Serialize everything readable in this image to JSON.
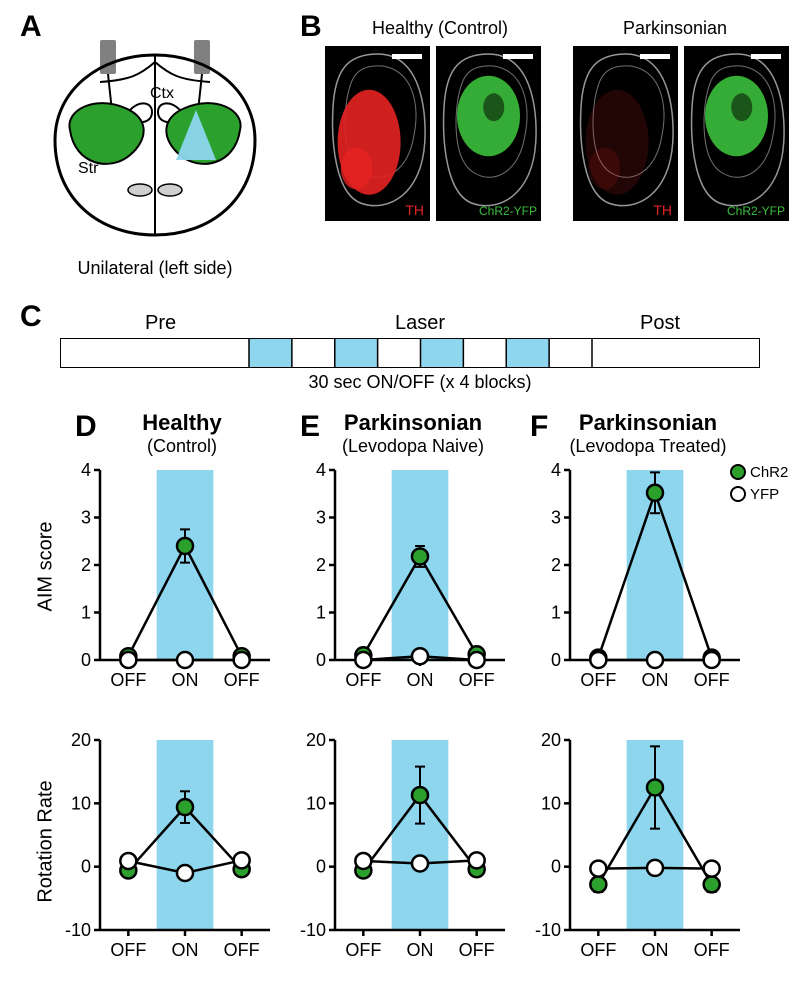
{
  "panelA": {
    "label": "A",
    "ctx_label": "Ctx",
    "str_label": "Str",
    "caption": "Unilateral (left side)",
    "colors": {
      "str_fill": "#2ca02c",
      "light_triangle": "#8dd6ee",
      "outline": "#000"
    }
  },
  "panelB": {
    "label": "B",
    "group1_title": "Healthy (Control)",
    "group2_title": "Parkinsonian",
    "th_label": "TH",
    "chr2_label": "ChR2-YFP",
    "colors": {
      "th_red": "#e62222",
      "yfp_green": "#3bbf3b",
      "bg": "#000000",
      "outline": "#bbbbbb"
    }
  },
  "panelC": {
    "label": "C",
    "pre": "Pre",
    "laser": "Laser",
    "post": "Post",
    "caption": "30 sec ON/OFF (x 4 blocks)",
    "block_color": "#8dd6ee"
  },
  "legend": {
    "chr2": "ChR2",
    "yfp": "YFP",
    "chr2_color": "#2ca02c",
    "yfp_color": "#ffffff"
  },
  "charts_common": {
    "x_categories": [
      "OFF",
      "ON",
      "OFF"
    ],
    "highlight_color": "#8dd6ee",
    "marker_stroke": "#000000",
    "line_color": "#000000",
    "axis_color": "#000000",
    "tick_fontsize": 18,
    "label_fontsize": 20
  },
  "panelD": {
    "label": "D",
    "title": "Healthy",
    "subtitle": "(Control)",
    "aim": {
      "ylabel": "AIM score",
      "ylim": [
        0,
        4
      ],
      "ytick_step": 1,
      "chr2": {
        "y": [
          0.08,
          2.4,
          0.08
        ],
        "err": [
          0.05,
          0.35,
          0.05
        ]
      },
      "yfp": {
        "y": [
          0.0,
          0.0,
          0.0
        ],
        "err": [
          0.0,
          0.0,
          0.0
        ]
      }
    },
    "rot": {
      "ylabel": "Rotation Rate",
      "ylim": [
        -10,
        20
      ],
      "ytick_step": 10,
      "chr2": {
        "y": [
          -0.6,
          9.4,
          -0.4
        ],
        "err": [
          0.5,
          2.5,
          0.5
        ]
      },
      "yfp": {
        "y": [
          0.9,
          -1.0,
          1.0
        ],
        "err": [
          0.4,
          0.4,
          0.4
        ]
      }
    }
  },
  "panelE": {
    "label": "E",
    "title": "Parkinsonian",
    "subtitle": "(Levodopa Naive)",
    "aim": {
      "ylabel": "AIM score",
      "ylim": [
        0,
        4
      ],
      "ytick_step": 1,
      "chr2": {
        "y": [
          0.1,
          2.18,
          0.12
        ],
        "err": [
          0.08,
          0.22,
          0.08
        ]
      },
      "yfp": {
        "y": [
          0.0,
          0.08,
          0.0
        ],
        "err": [
          0.0,
          0.0,
          0.0
        ]
      }
    },
    "rot": {
      "ylabel": "Rotation Rate",
      "ylim": [
        -10,
        20
      ],
      "ytick_step": 10,
      "chr2": {
        "y": [
          -0.6,
          11.3,
          -0.4
        ],
        "err": [
          0.6,
          4.5,
          0.6
        ]
      },
      "yfp": {
        "y": [
          0.9,
          0.5,
          1.0
        ],
        "err": [
          0.3,
          0.3,
          0.3
        ]
      }
    }
  },
  "panelF": {
    "label": "F",
    "title": "Parkinsonian",
    "subtitle": "(Levodopa Treated)",
    "aim": {
      "ylabel": "AIM score",
      "ylim": [
        0,
        4
      ],
      "ytick_step": 1,
      "chr2": {
        "y": [
          0.05,
          3.52,
          0.05
        ],
        "err": [
          0.05,
          0.43,
          0.05
        ]
      },
      "yfp": {
        "y": [
          0.0,
          0.0,
          0.0
        ],
        "err": [
          0.0,
          0.0,
          0.0
        ]
      }
    },
    "rot": {
      "ylabel": "Rotation Rate",
      "ylim": [
        -10,
        20
      ],
      "ytick_step": 10,
      "chr2": {
        "y": [
          -2.8,
          12.5,
          -2.8
        ],
        "err": [
          1.2,
          6.5,
          1.2
        ]
      },
      "yfp": {
        "y": [
          -0.3,
          -0.2,
          -0.3
        ],
        "err": [
          0.3,
          0.3,
          0.3
        ]
      }
    }
  }
}
